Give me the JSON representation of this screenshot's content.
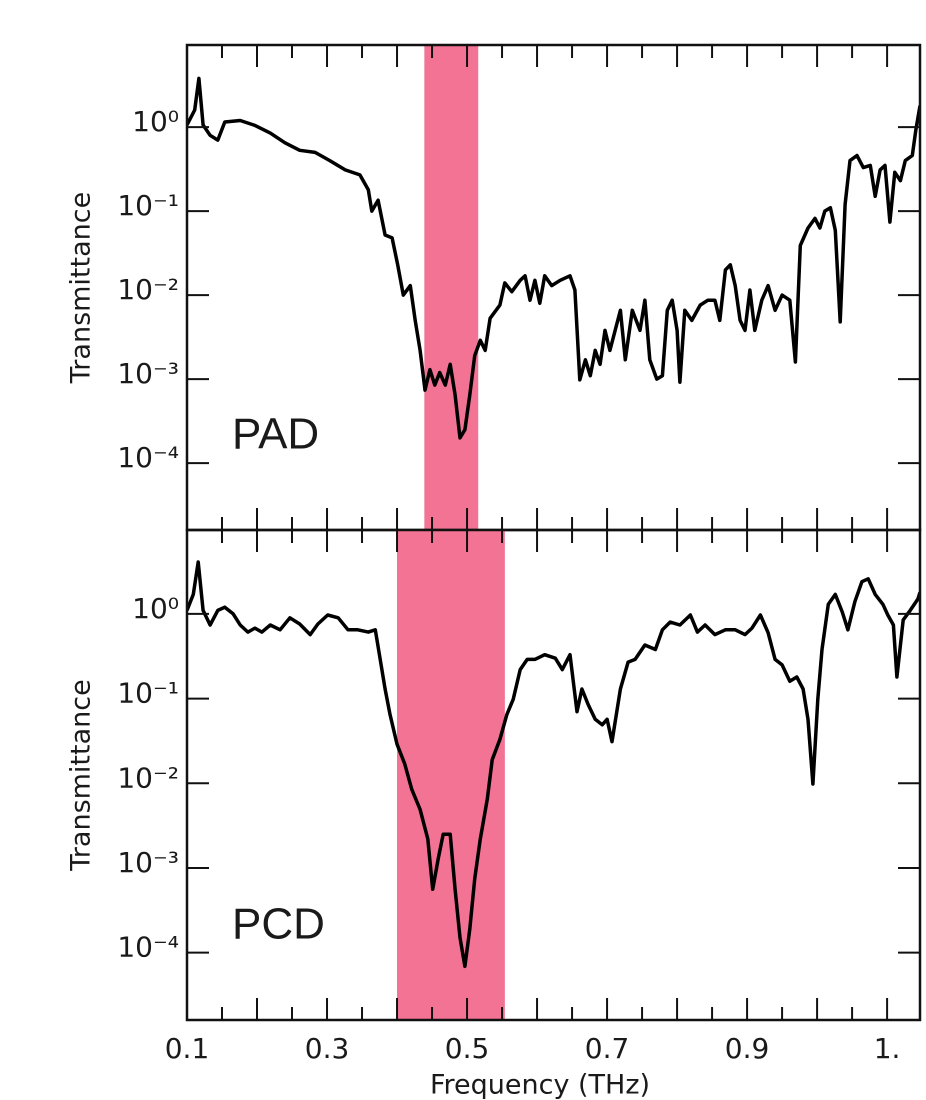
{
  "chart_data": [
    {
      "type": "line",
      "y_label": "Transmittance",
      "annotation": "PAD",
      "log_y": true,
      "band": [
        0.439,
        0.516
      ],
      "band_color": "#f27394",
      "xlim": [
        0.1,
        1.147
      ],
      "ylim": [
        1.6e-05,
        9.5
      ],
      "xticks": [
        0.1,
        0.3,
        0.5,
        0.7,
        0.9,
        1.1
      ],
      "xminor": [
        0.15,
        0.2,
        0.25,
        0.35,
        0.4,
        0.45,
        0.55,
        0.6,
        0.65,
        0.75,
        0.8,
        0.85,
        0.95,
        1.0,
        1.05
      ],
      "xtick_labels": false,
      "yticks": [
        {
          "value": 1,
          "label": "10⁰"
        },
        {
          "value": 0.1,
          "label": "10⁻¹"
        },
        {
          "value": 0.01,
          "label": "10⁻²"
        },
        {
          "value": 0.001,
          "label": "10⁻³"
        },
        {
          "value": 0.0001,
          "label": "10⁻⁴"
        }
      ],
      "series": [
        {
          "color": "#000000",
          "x": [
            0.1,
            0.111,
            0.117,
            0.123,
            0.133,
            0.144,
            0.154,
            0.176,
            0.197,
            0.219,
            0.24,
            0.261,
            0.283,
            0.304,
            0.326,
            0.347,
            0.359,
            0.364,
            0.373,
            0.383,
            0.393,
            0.401,
            0.409,
            0.419,
            0.426,
            0.433,
            0.44,
            0.447,
            0.454,
            0.461,
            0.469,
            0.476,
            0.483,
            0.49,
            0.497,
            0.504,
            0.511,
            0.519,
            0.526,
            0.533,
            0.547,
            0.554,
            0.564,
            0.576,
            0.583,
            0.59,
            0.597,
            0.604,
            0.611,
            0.621,
            0.633,
            0.647,
            0.654,
            0.661,
            0.669,
            0.676,
            0.683,
            0.69,
            0.697,
            0.704,
            0.719,
            0.726,
            0.736,
            0.747,
            0.754,
            0.761,
            0.771,
            0.779,
            0.786,
            0.793,
            0.8,
            0.804,
            0.811,
            0.821,
            0.833,
            0.844,
            0.854,
            0.861,
            0.869,
            0.876,
            0.883,
            0.89,
            0.897,
            0.904,
            0.911,
            0.921,
            0.93,
            0.94,
            0.95,
            0.961,
            0.969,
            0.976,
            0.987,
            0.997,
            1.004,
            1.011,
            1.019,
            1.026,
            1.033,
            1.04,
            1.047,
            1.057,
            1.066,
            1.076,
            1.083,
            1.09,
            1.097,
            1.104,
            1.111,
            1.119,
            1.126,
            1.136,
            1.141,
            1.147
          ],
          "values": [
            1.06,
            1.6,
            3.8,
            1.06,
            0.8,
            0.7,
            1.15,
            1.2,
            1.05,
            0.85,
            0.65,
            0.53,
            0.5,
            0.4,
            0.31,
            0.27,
            0.18,
            0.1,
            0.135,
            0.052,
            0.048,
            0.023,
            0.01,
            0.013,
            0.005,
            0.0022,
            0.00074,
            0.0013,
            0.00085,
            0.0012,
            0.00085,
            0.0015,
            0.00065,
            0.0002,
            0.00025,
            0.00065,
            0.0019,
            0.0029,
            0.0022,
            0.0053,
            0.0076,
            0.014,
            0.011,
            0.015,
            0.017,
            0.0087,
            0.015,
            0.008,
            0.017,
            0.013,
            0.015,
            0.017,
            0.0115,
            0.00098,
            0.0017,
            0.0011,
            0.0022,
            0.0015,
            0.0038,
            0.0022,
            0.0066,
            0.0017,
            0.0066,
            0.0038,
            0.0087,
            0.0017,
            0.001,
            0.0011,
            0.0066,
            0.0087,
            0.0038,
            0.00092,
            0.0066,
            0.005,
            0.0076,
            0.0087,
            0.0087,
            0.005,
            0.02,
            0.023,
            0.013,
            0.005,
            0.0038,
            0.0115,
            0.0038,
            0.0087,
            0.013,
            0.0066,
            0.01,
            0.0087,
            0.0016,
            0.039,
            0.063,
            0.082,
            0.063,
            0.1,
            0.11,
            0.059,
            0.0048,
            0.12,
            0.4,
            0.46,
            0.33,
            0.35,
            0.15,
            0.31,
            0.35,
            0.074,
            0.29,
            0.23,
            0.4,
            0.46,
            0.92,
            1.8
          ]
        }
      ]
    },
    {
      "type": "line",
      "y_label": "Transmittance",
      "x_label": "Frequency (THz)",
      "annotation": "PCD",
      "log_y": true,
      "band": [
        0.4,
        0.554
      ],
      "band_color": "#f27394",
      "xlim": [
        0.1,
        1.147
      ],
      "ylim": [
        1.6e-05,
        9.8
      ],
      "xticks": [
        0.1,
        0.3,
        0.5,
        0.7,
        0.9,
        {
          "value": 1.1,
          "label": "1."
        }
      ],
      "xminor": [
        0.15,
        0.2,
        0.25,
        0.35,
        0.4,
        0.45,
        0.55,
        0.6,
        0.65,
        0.75,
        0.8,
        0.85,
        0.95,
        1.0,
        1.05
      ],
      "xtick_labels": true,
      "yticks": [
        {
          "value": 1,
          "label": "10⁰"
        },
        {
          "value": 0.1,
          "label": "10⁻¹"
        },
        {
          "value": 0.01,
          "label": "10⁻²"
        },
        {
          "value": 0.001,
          "label": "10⁻³"
        },
        {
          "value": 0.0001,
          "label": "10⁻⁴"
        }
      ],
      "series": [
        {
          "color": "#000000",
          "x": [
            0.1,
            0.109,
            0.116,
            0.123,
            0.133,
            0.144,
            0.154,
            0.166,
            0.176,
            0.187,
            0.197,
            0.207,
            0.219,
            0.233,
            0.247,
            0.261,
            0.276,
            0.287,
            0.301,
            0.316,
            0.33,
            0.344,
            0.359,
            0.369,
            0.376,
            0.383,
            0.39,
            0.4,
            0.411,
            0.421,
            0.433,
            0.444,
            0.451,
            0.459,
            0.466,
            0.476,
            0.483,
            0.49,
            0.497,
            0.504,
            0.511,
            0.519,
            0.529,
            0.536,
            0.547,
            0.557,
            0.566,
            0.576,
            0.586,
            0.597,
            0.611,
            0.626,
            0.636,
            0.647,
            0.657,
            0.664,
            0.673,
            0.683,
            0.693,
            0.7,
            0.707,
            0.719,
            0.73,
            0.74,
            0.754,
            0.769,
            0.779,
            0.79,
            0.804,
            0.819,
            0.829,
            0.84,
            0.854,
            0.869,
            0.883,
            0.897,
            0.907,
            0.919,
            0.93,
            0.94,
            0.95,
            0.961,
            0.971,
            0.98,
            0.987,
            0.994,
            1.001,
            1.007,
            1.016,
            1.026,
            1.036,
            1.044,
            1.054,
            1.064,
            1.073,
            1.083,
            1.094,
            1.101,
            1.109,
            1.114,
            1.123,
            1.133,
            1.144,
            1.147
          ],
          "values": [
            1.1,
            1.7,
            4.1,
            1.1,
            0.74,
            1.1,
            1.2,
            1.0,
            0.74,
            0.61,
            0.68,
            0.61,
            0.74,
            0.65,
            0.9,
            0.76,
            0.57,
            0.76,
            0.97,
            0.9,
            0.65,
            0.65,
            0.61,
            0.65,
            0.29,
            0.13,
            0.065,
            0.029,
            0.017,
            0.0085,
            0.0049,
            0.0022,
            0.00056,
            0.0013,
            0.0025,
            0.0025,
            0.00056,
            0.00015,
            6.9e-05,
            0.00019,
            0.00074,
            0.0022,
            0.0065,
            0.019,
            0.033,
            0.065,
            0.098,
            0.22,
            0.29,
            0.29,
            0.33,
            0.3,
            0.22,
            0.33,
            0.07,
            0.13,
            0.085,
            0.057,
            0.049,
            0.057,
            0.031,
            0.13,
            0.27,
            0.29,
            0.43,
            0.38,
            0.65,
            0.8,
            0.74,
            0.97,
            0.61,
            0.74,
            0.57,
            0.65,
            0.65,
            0.57,
            0.68,
            0.97,
            0.6,
            0.29,
            0.25,
            0.16,
            0.18,
            0.13,
            0.057,
            0.0098,
            0.098,
            0.38,
            1.3,
            1.7,
            1.05,
            0.65,
            1.4,
            2.4,
            2.6,
            1.7,
            1.3,
            0.97,
            0.74,
            0.18,
            0.85,
            1.1,
            1.5,
            1.8
          ]
        }
      ]
    }
  ]
}
